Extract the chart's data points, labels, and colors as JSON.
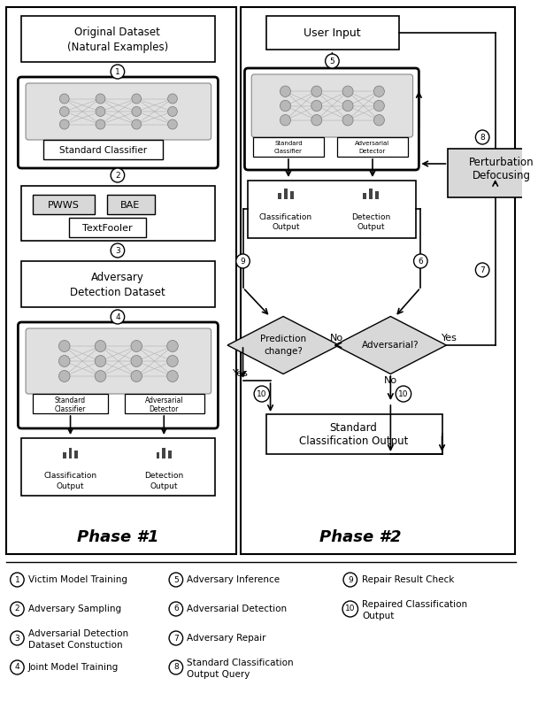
{
  "bg_color": "#ffffff",
  "phase1_title": "Phase #1",
  "phase2_title": "Phase #2",
  "legend_col1": [
    [
      "1",
      "Victim Model Training"
    ],
    [
      "2",
      "Adversary Sampling"
    ],
    [
      "3",
      "Adversarial Detection\nDataset Constuction"
    ],
    [
      "4",
      "Joint Model Training"
    ]
  ],
  "legend_col2": [
    [
      "5",
      "Adversary Inference"
    ],
    [
      "6",
      "Adversarial Detection"
    ],
    [
      "7",
      "Adversary Repair"
    ],
    [
      "8",
      "Standard Classification\nOutput Query"
    ]
  ],
  "legend_col3": [
    [
      "9",
      "Repair Result Check"
    ],
    [
      "10",
      "Repaired Classification\nOutput"
    ]
  ]
}
